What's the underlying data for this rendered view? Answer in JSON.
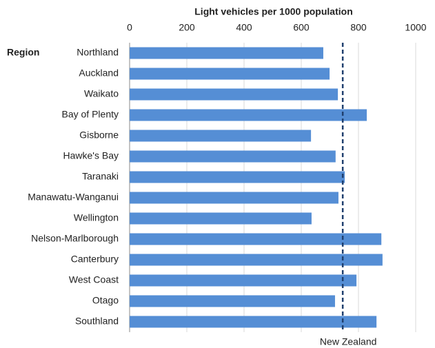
{
  "chart_data": {
    "type": "bar",
    "orientation": "horizontal",
    "title": "Light vehicles per 1000 population",
    "y_label": "Region",
    "categories": [
      "Northland",
      "Auckland",
      "Waikato",
      "Bay of Plenty",
      "Gisborne",
      "Hawke's Bay",
      "Taranaki",
      "Manawatu-Wanganui",
      "Wellington",
      "Nelson-Marlborough",
      "Canterbury",
      "West Coast",
      "Otago",
      "Southland"
    ],
    "values": [
      677,
      699,
      728,
      829,
      634,
      720,
      752,
      730,
      636,
      880,
      884,
      793,
      718,
      863
    ],
    "color": "#558ed5",
    "xlim": [
      0,
      1000
    ],
    "xticks": [
      0,
      200,
      400,
      600,
      800,
      1000
    ],
    "grid": true,
    "reference_line": {
      "label": "New Zealand",
      "value": 745,
      "color": "#1f3f6e"
    }
  }
}
